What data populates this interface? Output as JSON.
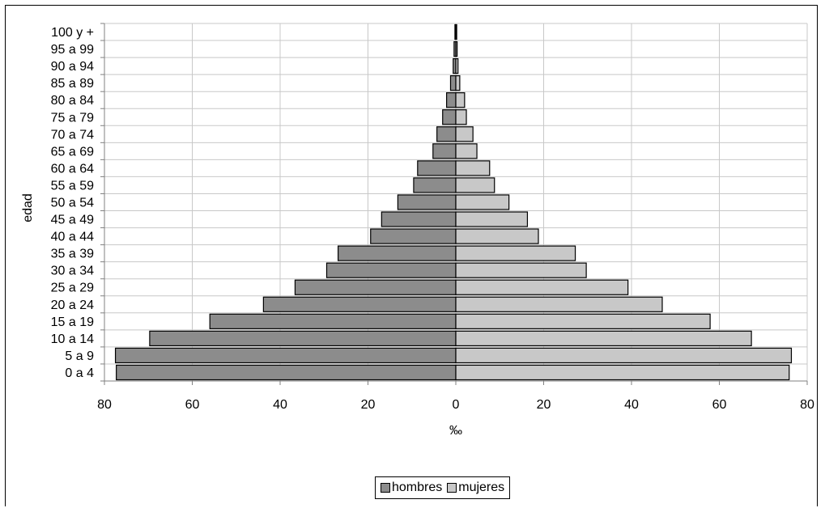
{
  "chart_data": {
    "type": "bar",
    "orientation": "horizontal",
    "subtype": "population-pyramid",
    "title": "",
    "xlabel": "‰",
    "ylabel": "edad",
    "xlim": [
      -80,
      80
    ],
    "x_ticks": [
      "80",
      "60",
      "40",
      "20",
      "0",
      "20",
      "40",
      "60",
      "80"
    ],
    "grid": true,
    "legend_position": "bottom",
    "categories": [
      "0 a 4",
      "5 a 9",
      "10 a 14",
      "15 a 19",
      "20 a 24",
      "25 a 29",
      "30 a 34",
      "35 a 39",
      "40 a 44",
      "45 a 49",
      "50 a 54",
      "55 a 59",
      "60 a 64",
      "65 a 69",
      "70 a 74",
      "75 a 79",
      "80 a 84",
      "85 a 89",
      "90 a 94",
      "95 a 99",
      "100 y +"
    ],
    "series": [
      {
        "name": "hombres",
        "color": "#8c8c8c",
        "values": [
          77.3,
          77.5,
          69.7,
          56.0,
          43.8,
          36.6,
          29.4,
          26.8,
          19.4,
          16.9,
          13.2,
          9.6,
          8.7,
          5.2,
          4.3,
          3.0,
          2.1,
          1.2,
          0.6,
          0.4,
          0.2
        ]
      },
      {
        "name": "mujeres",
        "color": "#c8c8c8",
        "values": [
          75.9,
          76.4,
          67.3,
          57.9,
          47.0,
          39.2,
          29.7,
          27.2,
          18.8,
          16.3,
          12.1,
          8.8,
          7.7,
          4.8,
          3.9,
          2.4,
          2.0,
          0.9,
          0.5,
          0.3,
          0.2
        ]
      }
    ]
  }
}
